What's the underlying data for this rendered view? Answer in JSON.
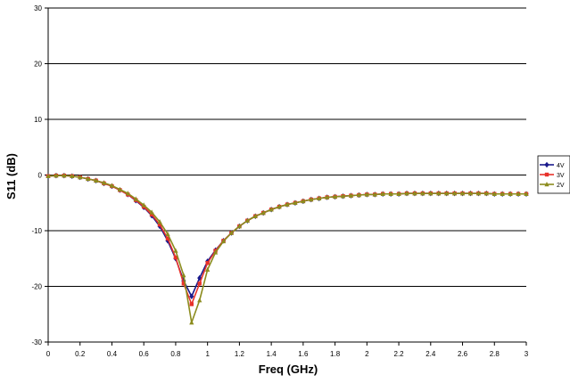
{
  "chart_data": {
    "type": "line",
    "title": "",
    "xlabel": "Freq (GHz)",
    "ylabel": "S11 (dB)",
    "xlim": [
      0,
      3
    ],
    "ylim": [
      -30,
      30
    ],
    "x_ticks": [
      0,
      0.2,
      0.4,
      0.6,
      0.8,
      1,
      1.2,
      1.4,
      1.6,
      1.8,
      2,
      2.2,
      2.4,
      2.6,
      2.8,
      3
    ],
    "x_tick_labels": [
      "0",
      "0.2",
      "0.4",
      "0.6",
      "0.8",
      "1",
      "1.2",
      "1.4",
      "1.6",
      "1.8",
      "2",
      "2.2",
      "2.4",
      "2.6",
      "2.8",
      "3"
    ],
    "y_ticks": [
      -30,
      -20,
      -10,
      0,
      10,
      20,
      30
    ],
    "y_tick_labels": [
      "-30",
      "-20",
      "-10",
      "0",
      "10",
      "20",
      "30"
    ],
    "grid": "horizontal major gridlines",
    "legend_position": "right",
    "x": [
      0,
      0.05,
      0.1,
      0.15,
      0.2,
      0.25,
      0.3,
      0.35,
      0.4,
      0.45,
      0.5,
      0.55,
      0.6,
      0.65,
      0.7,
      0.75,
      0.8,
      0.85,
      0.9,
      0.95,
      1.0,
      1.05,
      1.1,
      1.15,
      1.2,
      1.25,
      1.3,
      1.35,
      1.4,
      1.45,
      1.5,
      1.55,
      1.6,
      1.65,
      1.7,
      1.75,
      1.8,
      1.85,
      1.9,
      1.95,
      2.0,
      2.05,
      2.1,
      2.15,
      2.2,
      2.25,
      2.3,
      2.35,
      2.4,
      2.45,
      2.5,
      2.55,
      2.6,
      2.65,
      2.7,
      2.75,
      2.8,
      2.85,
      2.9,
      2.95,
      3.0
    ],
    "series": [
      {
        "name": "4V",
        "color": "#1a1a8c",
        "marker": "diamond",
        "values": [
          -0.2,
          -0.1,
          -0.1,
          -0.2,
          -0.4,
          -0.7,
          -1.0,
          -1.5,
          -2.0,
          -2.7,
          -3.5,
          -4.6,
          -5.8,
          -7.3,
          -9.2,
          -11.8,
          -15.0,
          -19.0,
          -21.8,
          -18.5,
          -15.5,
          -13.5,
          -11.8,
          -10.4,
          -9.2,
          -8.2,
          -7.4,
          -6.8,
          -6.2,
          -5.7,
          -5.3,
          -5.0,
          -4.7,
          -4.4,
          -4.2,
          -4.0,
          -3.9,
          -3.8,
          -3.7,
          -3.6,
          -3.5,
          -3.5,
          -3.4,
          -3.4,
          -3.4,
          -3.3,
          -3.3,
          -3.3,
          -3.3,
          -3.3,
          -3.3,
          -3.3,
          -3.3,
          -3.3,
          -3.3,
          -3.3,
          -3.4,
          -3.4,
          -3.4,
          -3.4,
          -3.4
        ]
      },
      {
        "name": "3V",
        "color": "#e8322b",
        "marker": "square",
        "values": [
          -0.2,
          -0.1,
          -0.1,
          -0.2,
          -0.4,
          -0.7,
          -1.0,
          -1.5,
          -2.0,
          -2.7,
          -3.5,
          -4.5,
          -5.7,
          -7.1,
          -8.9,
          -11.4,
          -14.8,
          -19.5,
          -23.2,
          -19.5,
          -15.8,
          -13.6,
          -11.8,
          -10.4,
          -9.2,
          -8.2,
          -7.4,
          -6.8,
          -6.2,
          -5.7,
          -5.3,
          -5.0,
          -4.7,
          -4.4,
          -4.2,
          -4.0,
          -3.9,
          -3.8,
          -3.7,
          -3.6,
          -3.5,
          -3.5,
          -3.4,
          -3.4,
          -3.4,
          -3.3,
          -3.3,
          -3.3,
          -3.3,
          -3.3,
          -3.3,
          -3.3,
          -3.3,
          -3.3,
          -3.3,
          -3.3,
          -3.4,
          -3.4,
          -3.4,
          -3.4,
          -3.4
        ]
      },
      {
        "name": "2V",
        "color": "#8c8c1e",
        "marker": "triangle",
        "values": [
          -0.2,
          -0.1,
          -0.1,
          -0.2,
          -0.4,
          -0.7,
          -1.0,
          -1.4,
          -1.9,
          -2.6,
          -3.3,
          -4.3,
          -5.4,
          -6.7,
          -8.4,
          -10.6,
          -13.6,
          -18.0,
          -26.5,
          -22.5,
          -17.0,
          -13.9,
          -11.9,
          -10.4,
          -9.2,
          -8.2,
          -7.4,
          -6.8,
          -6.2,
          -5.7,
          -5.3,
          -5.0,
          -4.7,
          -4.4,
          -4.2,
          -4.0,
          -3.9,
          -3.8,
          -3.7,
          -3.6,
          -3.5,
          -3.5,
          -3.4,
          -3.4,
          -3.4,
          -3.3,
          -3.3,
          -3.3,
          -3.3,
          -3.3,
          -3.3,
          -3.3,
          -3.3,
          -3.3,
          -3.3,
          -3.3,
          -3.4,
          -3.4,
          -3.4,
          -3.4,
          -3.4
        ]
      }
    ]
  }
}
